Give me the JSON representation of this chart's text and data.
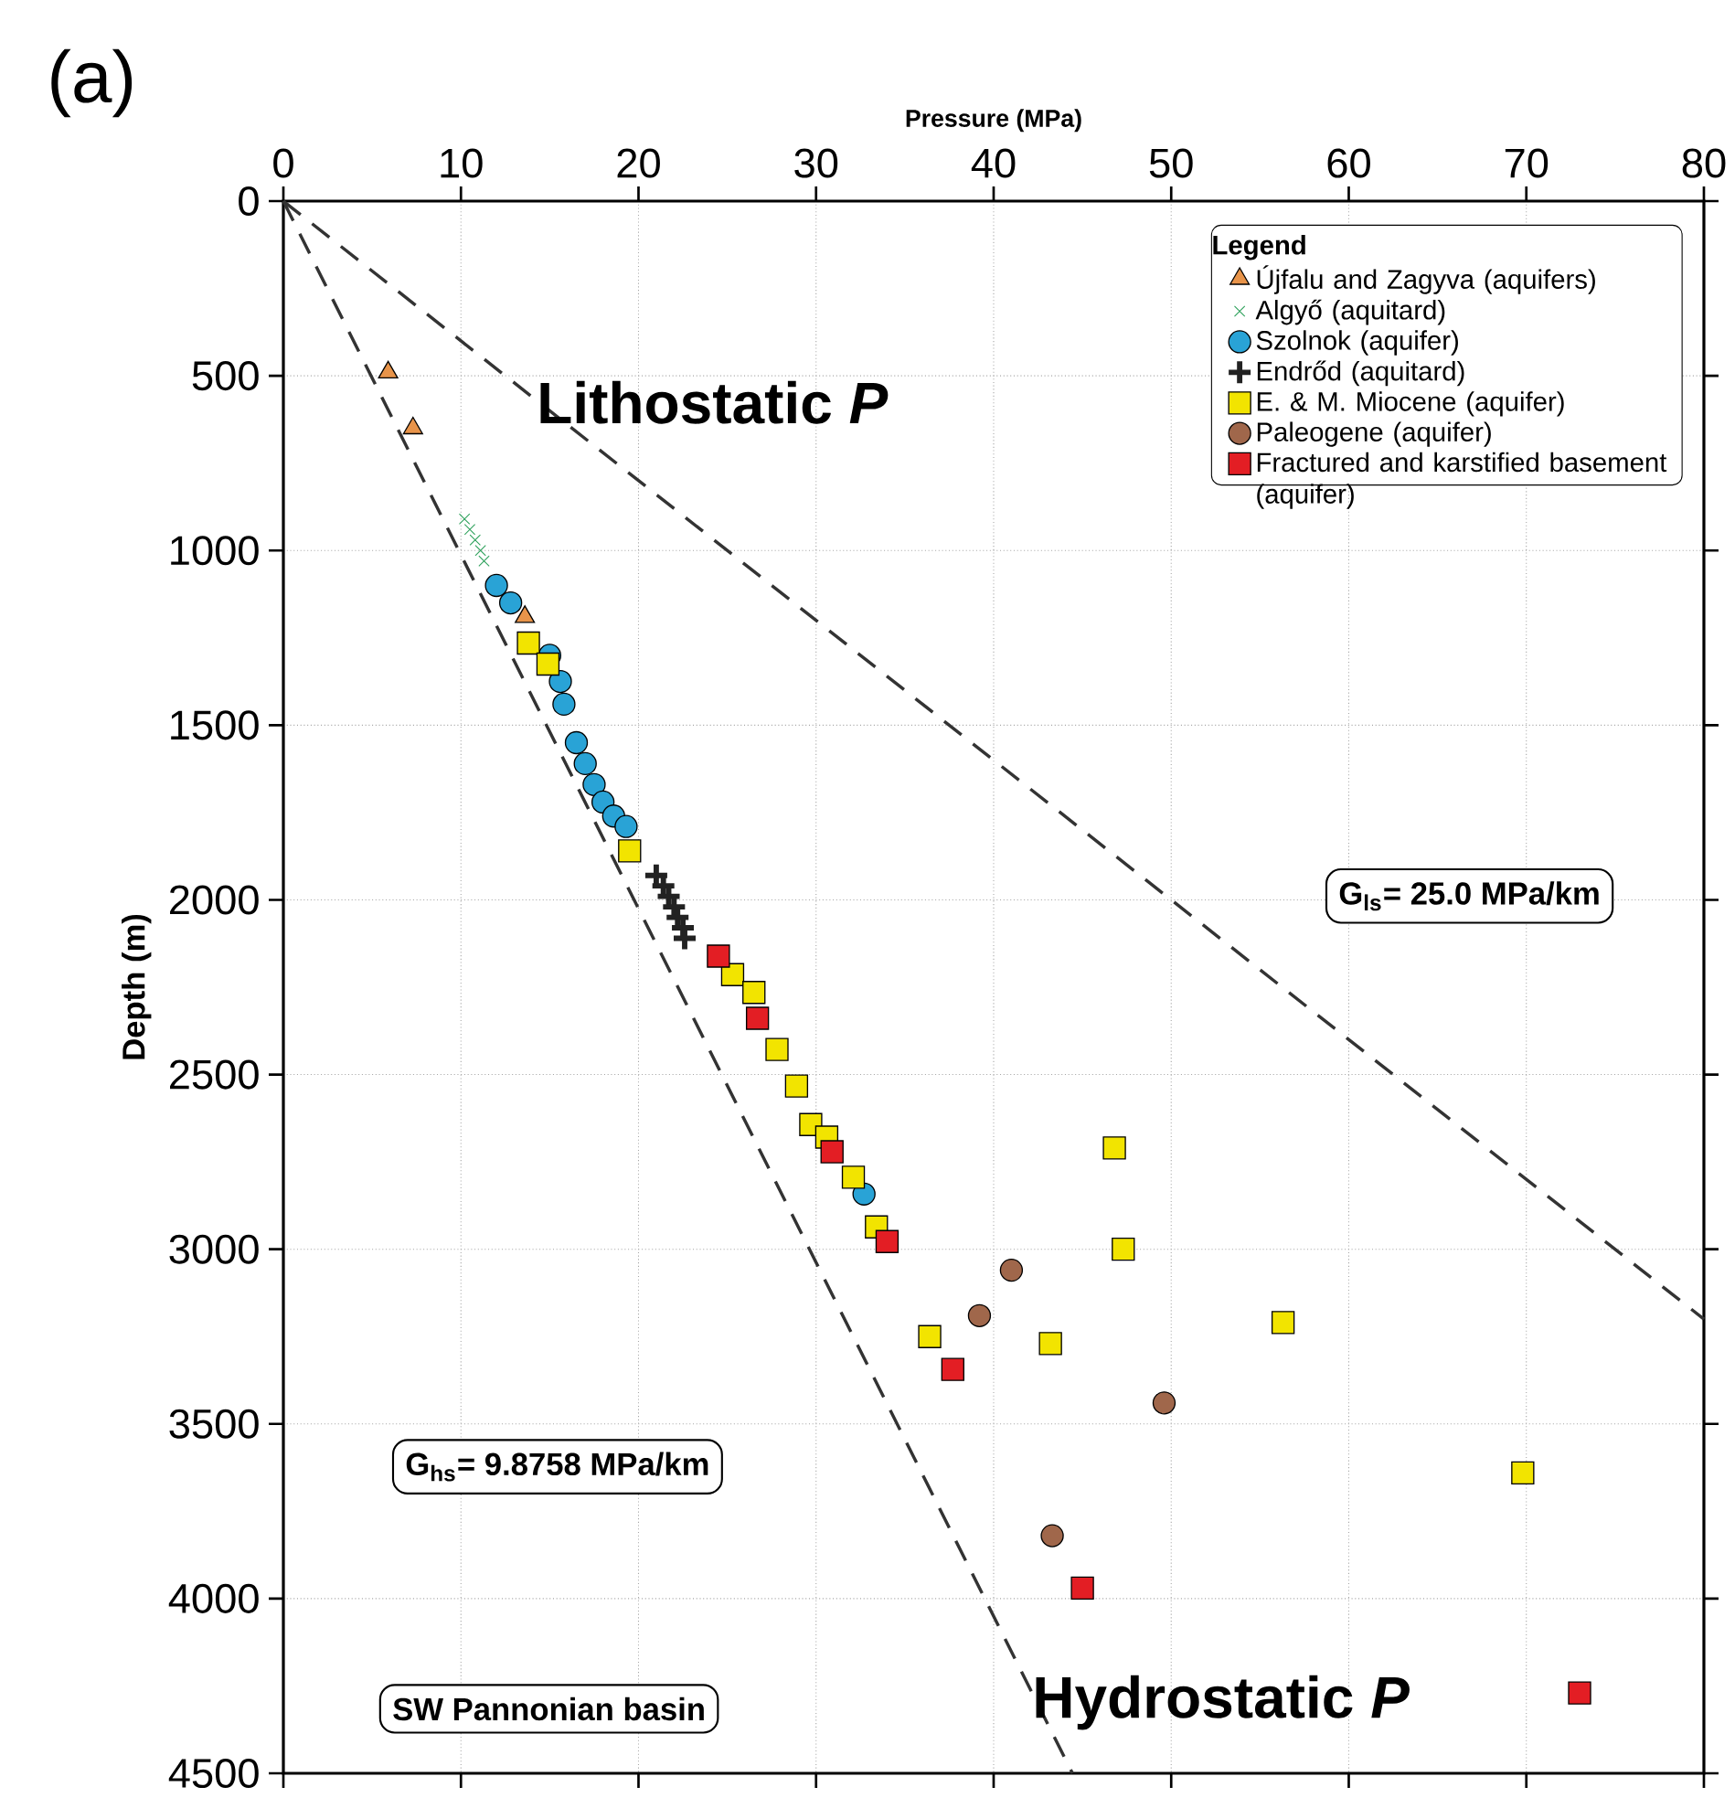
{
  "chart_data": {
    "type": "scatter",
    "xlabel": "Pressure (MPa)",
    "ylabel": "Depth (m)",
    "legend_title": "Legend",
    "xlim": [
      0,
      80
    ],
    "xticks": [
      0,
      10,
      20,
      30,
      40,
      50,
      60,
      70,
      80
    ],
    "ylim": [
      4500,
      0
    ],
    "yticks": [
      0,
      500,
      1000,
      1500,
      2000,
      2500,
      3000,
      3500,
      4000,
      4500
    ],
    "grid": true,
    "legend": "top right",
    "annotations": [
      "(a)",
      "G$_{ls}$= 25.0 MPa/km",
      "G$_{hs}$= 9.8758 MPa/km",
      "SW Pannonian basin"
    ],
    "series": [
      {
        "name": "Újfalu and Zagyva (aquifers)",
        "color": "#e8944a",
        "marker": "triangle",
        "x": [
          5.9,
          7.3,
          13.6
        ],
        "values": [
          490,
          650,
          1190
        ]
      },
      {
        "name": "Algyő (aquitard)",
        "color": "#2ca05a",
        "marker": "cross",
        "x": [
          10.2,
          10.5,
          10.8,
          11.1,
          11.3
        ],
        "values": [
          910,
          940,
          970,
          1000,
          1030
        ]
      },
      {
        "name": "Szolnok (aquifer)",
        "color": "#29a3d6",
        "marker": "circle",
        "x": [
          12.0,
          12.8,
          15.0,
          15.6,
          15.8,
          16.5,
          17.0,
          17.5,
          18.0,
          18.6,
          19.3,
          32.7
        ],
        "values": [
          1100,
          1150,
          1300,
          1375,
          1440,
          1550,
          1610,
          1670,
          1720,
          1760,
          1790,
          2842
        ]
      },
      {
        "name": "Endrőd (aquitard)",
        "color": "#222222",
        "marker": "plus",
        "x": [
          21.0,
          21.4,
          21.7,
          22.0,
          22.2,
          22.5,
          22.6
        ],
        "values": [
          1930,
          1960,
          1990,
          2020,
          2050,
          2080,
          2110
        ]
      },
      {
        "name": "E. & M. Miocene (aquifer)",
        "color": "#f2e400",
        "marker": "square",
        "x": [
          13.8,
          14.9,
          19.5,
          25.3,
          26.5,
          27.8,
          28.9,
          29.7,
          30.6,
          32.1,
          33.4,
          36.4,
          43.2,
          46.8,
          47.3,
          56.3,
          69.8
        ],
        "values": [
          1265,
          1325,
          1860,
          2214,
          2265,
          2428,
          2533,
          2643,
          2679,
          2794,
          2936,
          3250,
          3270,
          2710,
          3000,
          3210,
          3640
        ]
      },
      {
        "name": "Paleogene (aquifer)",
        "color": "#a0674b",
        "marker": "circle",
        "x": [
          41.0,
          39.2,
          49.6,
          43.3
        ],
        "values": [
          3060,
          3190,
          3440,
          3820
        ]
      },
      {
        "name": "Fractured and karstified basement (aquifer)",
        "color": "#e31e24",
        "marker": "square",
        "x": [
          24.5,
          26.7,
          30.9,
          34.0,
          37.7,
          45.0,
          73.0
        ],
        "values": [
          2161,
          2339,
          2721,
          2978,
          3344,
          3970,
          4270
        ]
      },
      {
        "name": "Lithostatic *P*",
        "type": "line",
        "line_style": "dashed",
        "color": "#333333",
        "x": [
          0,
          80
        ],
        "values": [
          0,
          3200
        ]
      },
      {
        "name": "Hydrostatic *P*",
        "type": "line",
        "line_style": "dashed",
        "color": "#333333",
        "x": [
          0,
          44.44
        ],
        "values": [
          0,
          4500
        ]
      }
    ]
  }
}
